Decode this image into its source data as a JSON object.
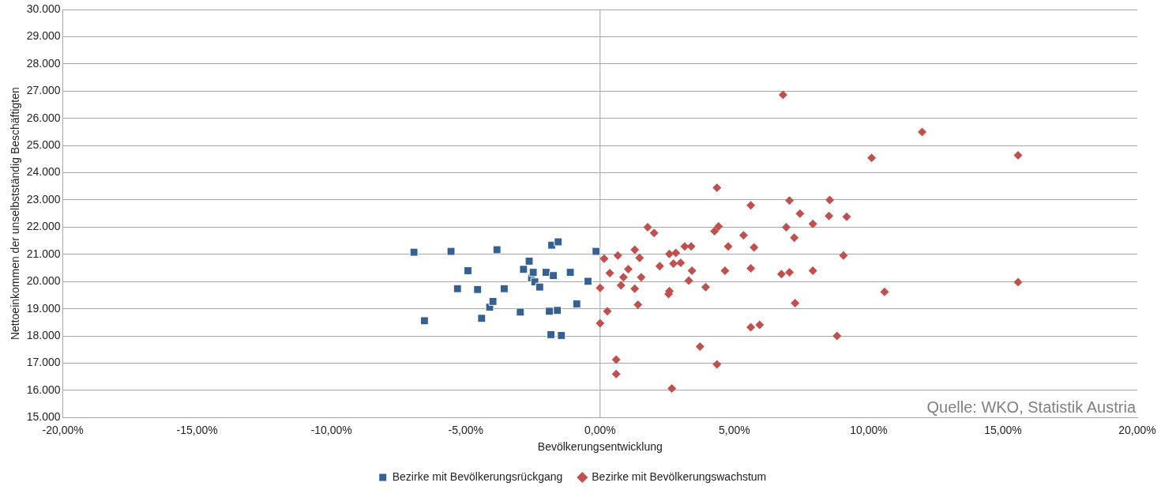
{
  "chart_data": {
    "type": "scatter",
    "xlabel": "Bevölkerungsentwicklung",
    "ylabel": "Nettoeinkommen der unselbstständig Beschäftigten",
    "xlim": [
      -20,
      20
    ],
    "xticks": [
      {
        "value": -20,
        "label": "-20,00%"
      },
      {
        "value": -15,
        "label": "-15,00%"
      },
      {
        "value": -10,
        "label": "-10,00%"
      },
      {
        "value": -5,
        "label": "-5,00%"
      },
      {
        "value": 0,
        "label": "0,00%"
      },
      {
        "value": 5,
        "label": "5,00%"
      },
      {
        "value": 10,
        "label": "10,00%"
      },
      {
        "value": 15,
        "label": "15,00%"
      },
      {
        "value": 20,
        "label": "20,00%"
      }
    ],
    "ylim": [
      15000,
      30000
    ],
    "yticks": [
      {
        "value": 15000,
        "label": "15.000"
      },
      {
        "value": 16000,
        "label": "16.000"
      },
      {
        "value": 17000,
        "label": "17.000"
      },
      {
        "value": 18000,
        "label": "18.000"
      },
      {
        "value": 19000,
        "label": "19.000"
      },
      {
        "value": 20000,
        "label": "20.000"
      },
      {
        "value": 21000,
        "label": "21.000"
      },
      {
        "value": 22000,
        "label": "22.000"
      },
      {
        "value": 23000,
        "label": "23.000"
      },
      {
        "value": 24000,
        "label": "24.000"
      },
      {
        "value": 25000,
        "label": "25.000"
      },
      {
        "value": 26000,
        "label": "26.000"
      },
      {
        "value": 27000,
        "label": "27.000"
      },
      {
        "value": 28000,
        "label": "28.000"
      },
      {
        "value": 29000,
        "label": "29.000"
      },
      {
        "value": 30000,
        "label": "30.000"
      }
    ],
    "grid": "y",
    "legend": "bottom",
    "ref_lines": [
      {
        "axis": "x",
        "value": 0,
        "color": "#a6a6a6"
      }
    ],
    "annotations": [
      "Quelle: WKO, Statistik Austria"
    ],
    "series": [
      {
        "name": "Bezirke mit Bevölkerungsrückgang",
        "color": "#376092",
        "marker": "square",
        "x": [
          -6.93,
          -6.54,
          -5.55,
          -5.31,
          -4.92,
          -4.56,
          -4.41,
          -4.11,
          -3.99,
          -3.84,
          -3.57,
          -2.97,
          -2.85,
          -2.64,
          -2.55,
          -2.49,
          -2.43,
          -2.25,
          -2.01,
          -1.89,
          -1.83,
          -1.8,
          -1.74,
          -1.59,
          -1.56,
          -1.44,
          -1.11,
          -0.87,
          -0.45,
          -0.15
        ],
        "values": [
          21080,
          18560,
          21110,
          19740,
          20400,
          19710,
          18650,
          19060,
          19270,
          21170,
          19740,
          18880,
          20450,
          20750,
          20130,
          20340,
          19990,
          19800,
          20340,
          18910,
          18050,
          21340,
          20220,
          18940,
          21460,
          18020,
          20340,
          19180,
          20010,
          21110
        ]
      },
      {
        "name": "Bezirke mit Bevölkerungswachstum",
        "color": "#c0504d",
        "marker": "diamond",
        "x": [
          0.0,
          0.0,
          0.15,
          0.27,
          0.36,
          0.6,
          0.6,
          0.66,
          0.78,
          0.87,
          1.05,
          1.29,
          1.29,
          1.41,
          1.47,
          1.53,
          1.77,
          2.01,
          2.22,
          2.55,
          2.58,
          2.58,
          2.67,
          2.73,
          2.82,
          3.0,
          3.15,
          3.3,
          3.39,
          3.42,
          3.72,
          3.93,
          4.26,
          4.35,
          4.35,
          4.41,
          4.65,
          4.77,
          5.34,
          5.61,
          5.61,
          5.61,
          5.73,
          5.94,
          6.75,
          6.81,
          6.93,
          7.05,
          7.05,
          7.23,
          7.26,
          7.44,
          7.92,
          7.92,
          8.55,
          8.52,
          8.82,
          9.06,
          9.18,
          10.11,
          10.59,
          11.99,
          15.56,
          15.56
        ],
        "values": [
          18470,
          19770,
          20840,
          18910,
          20310,
          17130,
          16600,
          20960,
          19860,
          20160,
          20460,
          21170,
          19740,
          19150,
          20870,
          20160,
          22000,
          21790,
          20570,
          19540,
          19650,
          21020,
          16070,
          20660,
          21050,
          20690,
          21290,
          20040,
          21290,
          20400,
          17610,
          19800,
          21850,
          23450,
          16960,
          22030,
          20400,
          21290,
          21700,
          22800,
          20490,
          18320,
          21260,
          18410,
          20280,
          26860,
          22000,
          20340,
          22980,
          21610,
          19210,
          22500,
          22120,
          20400,
          23000,
          22410,
          18000,
          20960,
          22380,
          24550,
          19620,
          25500,
          24640,
          19980
        ]
      }
    ]
  }
}
